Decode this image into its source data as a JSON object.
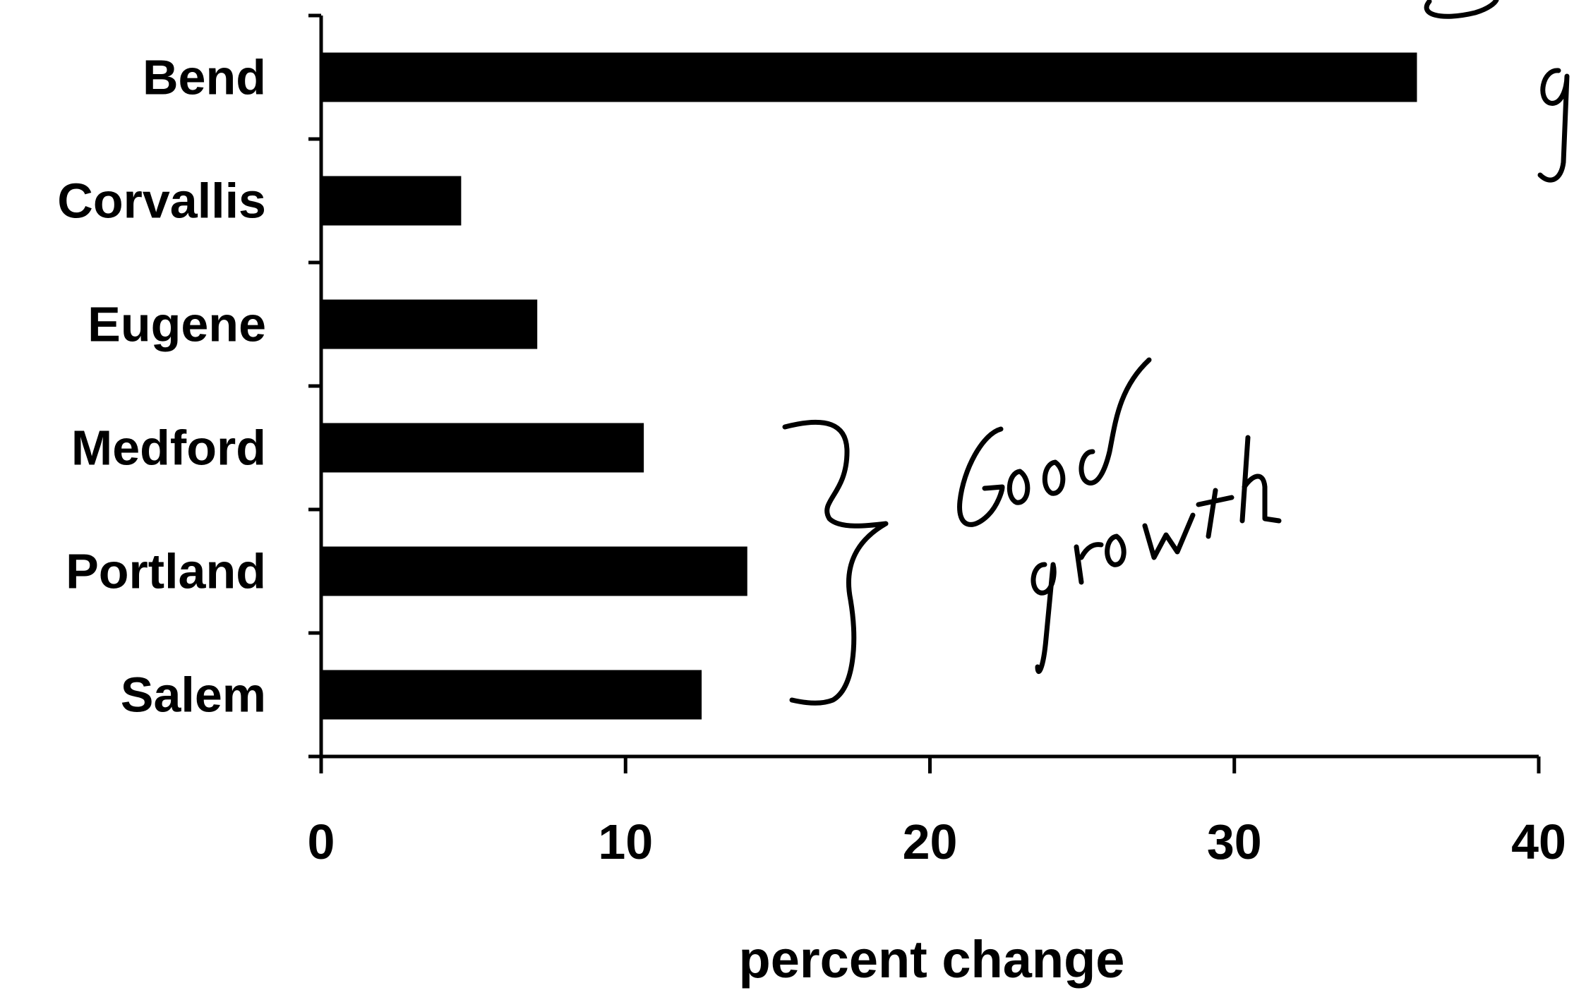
{
  "chart_data": {
    "type": "bar",
    "orientation": "horizontal",
    "categories": [
      "Bend",
      "Corvallis",
      "Eugene",
      "Medford",
      "Portland",
      "Salem"
    ],
    "values": [
      36,
      4.6,
      7.1,
      10.6,
      14,
      12.5
    ],
    "xlabel": "percent change",
    "ylabel": "",
    "xlim": [
      0,
      40
    ],
    "xticks": [
      "0",
      "10",
      "20",
      "30",
      "40"
    ],
    "grid": false,
    "colors": {
      "bar": "#000000",
      "background": "#ffffff"
    },
    "annotation": {
      "text": "Good growth",
      "style": "handwritten",
      "brace_spans": [
        "Medford",
        "Portland",
        "Salem"
      ]
    }
  }
}
